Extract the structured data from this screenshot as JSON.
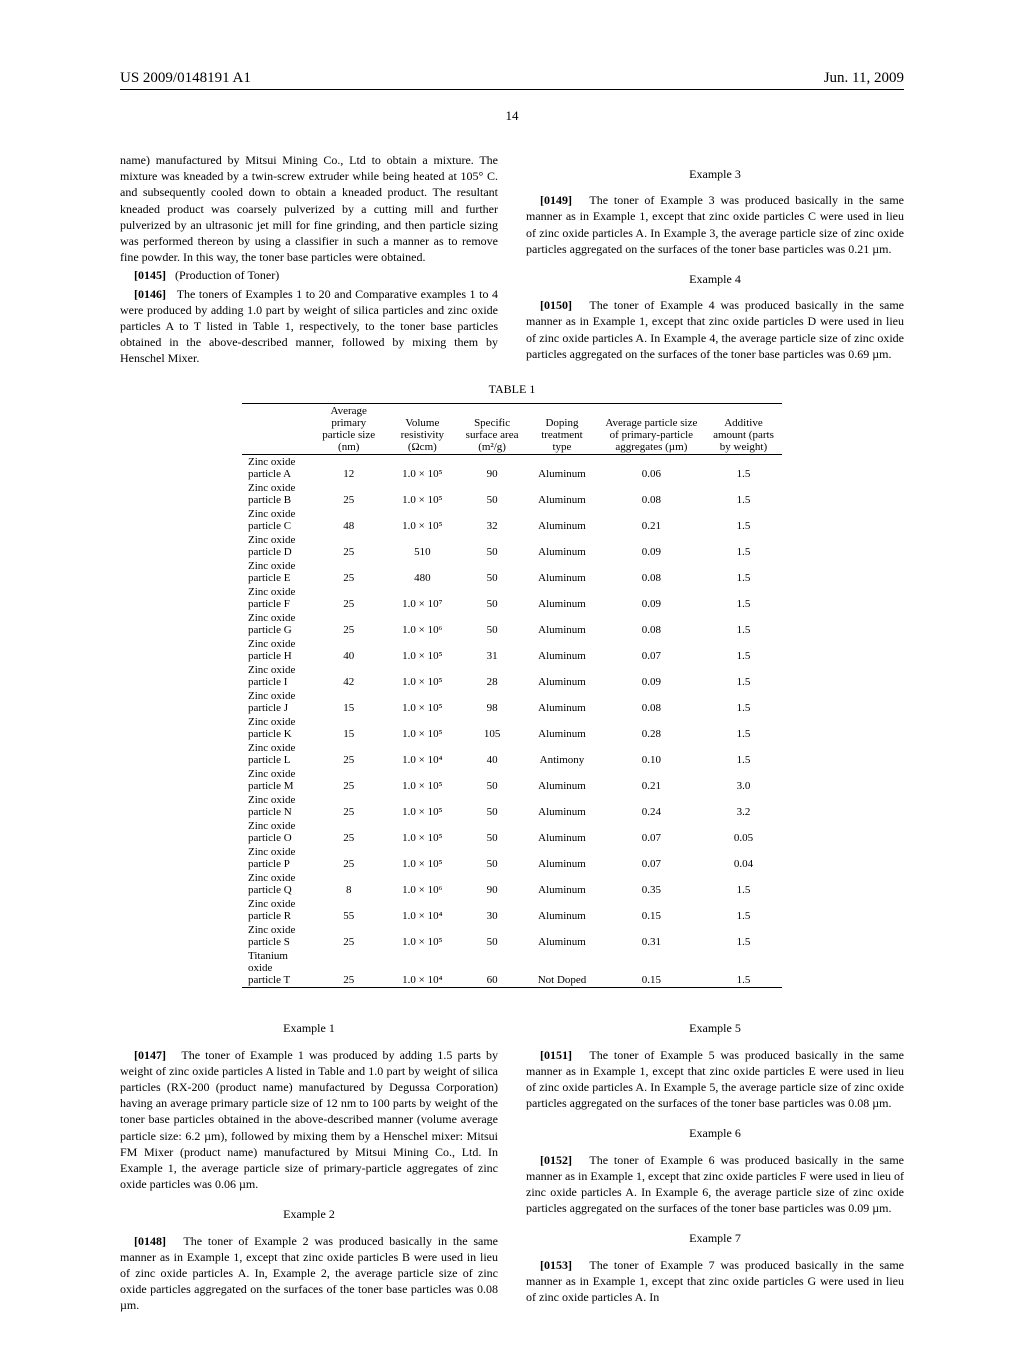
{
  "header": {
    "left": "US 2009/0148191 A1",
    "right": "Jun. 11, 2009"
  },
  "pageNumber": "14",
  "topLeft": {
    "text1": "name) manufactured by Mitsui Mining Co., Ltd to obtain a mixture. The mixture was kneaded by a twin-screw extruder while being heated at 105° C. and subsequently cooled down to obtain a kneaded product. The resultant kneaded product was coarsely pulverized by a cutting mill and further pulverized by an ultrasonic jet mill for fine grinding, and then particle sizing was performed thereon by using a classifier in such a manner as to remove fine powder. In this way, the toner base particles were obtained.",
    "para145num": "[0145]",
    "para145text": "(Production of Toner)",
    "para146num": "[0146]",
    "para146text": "The toners of Examples 1 to 20 and Comparative examples 1 to 4 were produced by adding 1.0 part by weight of silica particles and zinc oxide particles A to T listed in Table 1, respectively, to the toner base particles obtained in the above-described manner, followed by mixing them by Henschel Mixer."
  },
  "topRight": {
    "ex3": {
      "heading": "Example 3",
      "num": "[0149]",
      "text": "The toner of Example 3 was produced basically in the same manner as in Example 1, except that zinc oxide particles C were used in lieu of zinc oxide particles A. In Example 3, the average particle size of zinc oxide particles aggregated on the surfaces of the toner base particles was 0.21 µm."
    },
    "ex4": {
      "heading": "Example 4",
      "num": "[0150]",
      "text": "The toner of Example 4 was produced basically in the same manner as in Example 1, except that zinc oxide particles D were used in lieu of zinc oxide particles A. In Example 4, the average particle size of zinc oxide particles aggregated on the surfaces of the toner base particles was 0.69 µm."
    }
  },
  "table": {
    "title": "TABLE 1",
    "headers": [
      [
        "",
        "Average primary particle size (nm)",
        "Volume resistivity (Ωcm)",
        "Specific surface area (m²/g)",
        "Doping treatment type",
        "Average particle size of primary-particle aggregates (µm)",
        "Additive amount (parts by weight)"
      ]
    ],
    "rows": [
      [
        "Zinc oxide particle A",
        "12",
        "1.0 × 10⁵",
        "90",
        "Aluminum",
        "0.06",
        "1.5"
      ],
      [
        "Zinc oxide particle B",
        "25",
        "1.0 × 10⁵",
        "50",
        "Aluminum",
        "0.08",
        "1.5"
      ],
      [
        "Zinc oxide particle C",
        "48",
        "1.0 × 10⁵",
        "32",
        "Aluminum",
        "0.21",
        "1.5"
      ],
      [
        "Zinc oxide particle D",
        "25",
        "510",
        "50",
        "Aluminum",
        "0.09",
        "1.5"
      ],
      [
        "Zinc oxide particle E",
        "25",
        "480",
        "50",
        "Aluminum",
        "0.08",
        "1.5"
      ],
      [
        "Zinc oxide particle F",
        "25",
        "1.0 × 10⁷",
        "50",
        "Aluminum",
        "0.09",
        "1.5"
      ],
      [
        "Zinc oxide particle G",
        "25",
        "1.0 × 10⁶",
        "50",
        "Aluminum",
        "0.08",
        "1.5"
      ],
      [
        "Zinc oxide particle H",
        "40",
        "1.0 × 10⁵",
        "31",
        "Aluminum",
        "0.07",
        "1.5"
      ],
      [
        "Zinc oxide particle I",
        "42",
        "1.0 × 10⁵",
        "28",
        "Aluminum",
        "0.09",
        "1.5"
      ],
      [
        "Zinc oxide particle J",
        "15",
        "1.0 × 10⁵",
        "98",
        "Aluminum",
        "0.08",
        "1.5"
      ],
      [
        "Zinc oxide particle K",
        "15",
        "1.0 × 10⁵",
        "105",
        "Aluminum",
        "0.28",
        "1.5"
      ],
      [
        "Zinc oxide particle L",
        "25",
        "1.0 × 10⁴",
        "40",
        "Antimony",
        "0.10",
        "1.5"
      ],
      [
        "Zinc oxide particle M",
        "25",
        "1.0 × 10⁵",
        "50",
        "Aluminum",
        "0.21",
        "3.0"
      ],
      [
        "Zinc oxide particle N",
        "25",
        "1.0 × 10⁵",
        "50",
        "Aluminum",
        "0.24",
        "3.2"
      ],
      [
        "Zinc oxide particle O",
        "25",
        "1.0 × 10⁵",
        "50",
        "Aluminum",
        "0.07",
        "0.05"
      ],
      [
        "Zinc oxide particle P",
        "25",
        "1.0 × 10⁵",
        "50",
        "Aluminum",
        "0.07",
        "0.04"
      ],
      [
        "Zinc oxide particle Q",
        "8",
        "1.0 × 10⁶",
        "90",
        "Aluminum",
        "0.35",
        "1.5"
      ],
      [
        "Zinc oxide particle R",
        "55",
        "1.0 × 10⁴",
        "30",
        "Aluminum",
        "0.15",
        "1.5"
      ],
      [
        "Zinc oxide particle S",
        "25",
        "1.0 × 10⁵",
        "50",
        "Aluminum",
        "0.31",
        "1.5"
      ],
      [
        "Titanium oxide particle T",
        "25",
        "1.0 × 10⁴",
        "60",
        "Not Doped",
        "0.15",
        "1.5"
      ]
    ]
  },
  "bottomLeft": {
    "ex1": {
      "heading": "Example 1",
      "num": "[0147]",
      "text": "The toner of Example 1 was produced by adding 1.5 parts by weight of zinc oxide particles A listed in Table and 1.0 part by weight of silica particles (RX-200 (product name) manufactured by Degussa Corporation) having an average primary particle size of 12 nm to 100 parts by weight of the toner base particles obtained in the above-described manner (volume average particle size: 6.2 µm), followed by mixing them by a Henschel mixer: Mitsui FM Mixer (product name) manufactured by Mitsui Mining Co., Ltd. In Example 1, the average particle size of primary-particle aggregates of zinc oxide particles was 0.06 µm."
    },
    "ex2": {
      "heading": "Example 2",
      "num": "[0148]",
      "text": "The toner of Example 2 was produced basically in the same manner as in Example 1, except that zinc oxide particles B were used in lieu of zinc oxide particles A. In, Example 2, the average particle size of zinc oxide particles aggregated on the surfaces of the toner base particles was 0.08 µm."
    }
  },
  "bottomRight": {
    "ex5": {
      "heading": "Example 5",
      "num": "[0151]",
      "text": "The toner of Example 5 was produced basically in the same manner as in Example 1, except that zinc oxide particles E were used in lieu of zinc oxide particles A. In Example 5, the average particle size of zinc oxide particles aggregated on the surfaces of the toner base particles was 0.08 µm."
    },
    "ex6": {
      "heading": "Example 6",
      "num": "[0152]",
      "text": "The toner of Example 6 was produced basically in the same manner as in Example 1, except that zinc oxide particles F were used in lieu of zinc oxide particles A. In Example 6, the average particle size of zinc oxide particles aggregated on the surfaces of the toner base particles was 0.09 µm."
    },
    "ex7": {
      "heading": "Example 7",
      "num": "[0153]",
      "text": "The toner of Example 7 was produced basically in the same manner as in Example 1, except that zinc oxide particles G were used in lieu of zinc oxide particles A. In"
    }
  }
}
